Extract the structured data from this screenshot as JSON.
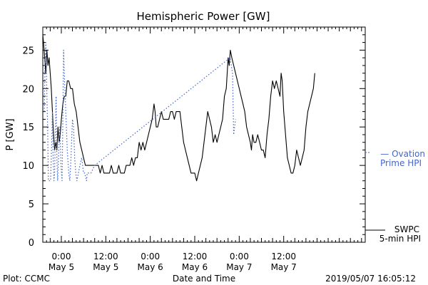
{
  "page": {
    "footer_left": "Plot: CCMC",
    "footer_right": "2019/05/07 16:05:12"
  },
  "chart_data": {
    "type": "line",
    "title": "Hemispheric Power [GW]",
    "xlabel": "Date and Time",
    "ylabel": "P [GW]",
    "ylim": [
      0,
      28
    ],
    "yticks": [
      0,
      5,
      10,
      15,
      20,
      25
    ],
    "xlim_hours": [
      -5,
      82
    ],
    "x_units": "hours since 2019-05-05 00:00 UT",
    "xticks": [
      {
        "t": 0,
        "time": "0:00",
        "date": "May 5"
      },
      {
        "t": 12,
        "time": "12:00",
        "date": "May 5"
      },
      {
        "t": 24,
        "time": "0:00",
        "date": "May 6"
      },
      {
        "t": 36,
        "time": "12:00",
        "date": "May 6"
      },
      {
        "t": 48,
        "time": "0:00",
        "date": "May 7"
      },
      {
        "t": 60,
        "time": "12:00",
        "date": "May 7"
      }
    ],
    "grid": false,
    "legend_position": "right",
    "series": [
      {
        "name": "SWPC 5-min HPI",
        "label_lines": [
          "SWPC",
          "5-min HPI"
        ],
        "color": "#000000",
        "style": "solid",
        "points": [
          [
            -5,
            27
          ],
          [
            -4.8,
            26
          ],
          [
            -4.5,
            24
          ],
          [
            -4.2,
            22
          ],
          [
            -3.9,
            25
          ],
          [
            -3.6,
            23
          ],
          [
            -3.3,
            24
          ],
          [
            -3,
            22
          ],
          [
            -2.7,
            20
          ],
          [
            -2.4,
            17
          ],
          [
            -2.1,
            14
          ],
          [
            -1.8,
            12
          ],
          [
            -1.5,
            13
          ],
          [
            -1.2,
            12
          ],
          [
            -0.9,
            15
          ],
          [
            -0.6,
            13
          ],
          [
            -0.3,
            14
          ],
          [
            0,
            16
          ],
          [
            0.4,
            18
          ],
          [
            0.8,
            19
          ],
          [
            1.2,
            19
          ],
          [
            1.6,
            21
          ],
          [
            2,
            21
          ],
          [
            2.5,
            20
          ],
          [
            3,
            20
          ],
          [
            3.5,
            18
          ],
          [
            4,
            17
          ],
          [
            4.5,
            15
          ],
          [
            5,
            13
          ],
          [
            5.5,
            12
          ],
          [
            6,
            11
          ],
          [
            6.5,
            10
          ],
          [
            7,
            10
          ],
          [
            8,
            10
          ],
          [
            9,
            10
          ],
          [
            10,
            10
          ],
          [
            10.5,
            9
          ],
          [
            11,
            10
          ],
          [
            11.5,
            9
          ],
          [
            12,
            9
          ],
          [
            13,
            9
          ],
          [
            13.5,
            10
          ],
          [
            14,
            9
          ],
          [
            15,
            9
          ],
          [
            15.5,
            10
          ],
          [
            16,
            9
          ],
          [
            17,
            9
          ],
          [
            17.5,
            10
          ],
          [
            18,
            10
          ],
          [
            18.5,
            10
          ],
          [
            19,
            11
          ],
          [
            19.5,
            10
          ],
          [
            20,
            11
          ],
          [
            20.5,
            11
          ],
          [
            21,
            13
          ],
          [
            21.5,
            12
          ],
          [
            22,
            13
          ],
          [
            22.5,
            12
          ],
          [
            23,
            13
          ],
          [
            23.5,
            14
          ],
          [
            24,
            15
          ],
          [
            24.5,
            16
          ],
          [
            25,
            18
          ],
          [
            25.3,
            17
          ],
          [
            25.6,
            15
          ],
          [
            26,
            15
          ],
          [
            26.5,
            16
          ],
          [
            27,
            17
          ],
          [
            27.5,
            16
          ],
          [
            28,
            16
          ],
          [
            29,
            16
          ],
          [
            29.5,
            17
          ],
          [
            30,
            17
          ],
          [
            30.5,
            16
          ],
          [
            31,
            17
          ],
          [
            32,
            17
          ],
          [
            32.5,
            15
          ],
          [
            33,
            13
          ],
          [
            33.5,
            12
          ],
          [
            34,
            11
          ],
          [
            34.5,
            10
          ],
          [
            35,
            9
          ],
          [
            36,
            9
          ],
          [
            36.5,
            8
          ],
          [
            37,
            9
          ],
          [
            37.5,
            10
          ],
          [
            38,
            11
          ],
          [
            38.5,
            13
          ],
          [
            39,
            15
          ],
          [
            39.5,
            17
          ],
          [
            40,
            16
          ],
          [
            40.5,
            15
          ],
          [
            41,
            13
          ],
          [
            41.5,
            14
          ],
          [
            42,
            13
          ],
          [
            42.5,
            14
          ],
          [
            43,
            15
          ],
          [
            43.5,
            16
          ],
          [
            44,
            19
          ],
          [
            44.5,
            20
          ],
          [
            45,
            24
          ],
          [
            45.3,
            23
          ],
          [
            45.6,
            25
          ],
          [
            46,
            24
          ],
          [
            46.5,
            23
          ],
          [
            47,
            22
          ],
          [
            47.5,
            21
          ],
          [
            48,
            20
          ],
          [
            48.5,
            19
          ],
          [
            49,
            18
          ],
          [
            49.5,
            17
          ],
          [
            50,
            15
          ],
          [
            50.5,
            14
          ],
          [
            51,
            13
          ],
          [
            51.3,
            12
          ],
          [
            51.6,
            14
          ],
          [
            52,
            13
          ],
          [
            52.5,
            13
          ],
          [
            53,
            14
          ],
          [
            53.5,
            13
          ],
          [
            54,
            12
          ],
          [
            54.5,
            12
          ],
          [
            55,
            11
          ],
          [
            55.5,
            14
          ],
          [
            56,
            16
          ],
          [
            56.5,
            19
          ],
          [
            57,
            21
          ],
          [
            57.5,
            20
          ],
          [
            58,
            21
          ],
          [
            58.5,
            20
          ],
          [
            59,
            19
          ],
          [
            59.3,
            22
          ],
          [
            59.6,
            21
          ],
          [
            60,
            17
          ],
          [
            60.5,
            14
          ],
          [
            61,
            11
          ],
          [
            61.5,
            10
          ],
          [
            62,
            9
          ],
          [
            62.5,
            9
          ],
          [
            63,
            10
          ],
          [
            63.5,
            12
          ],
          [
            64,
            11
          ],
          [
            64.5,
            10
          ],
          [
            65,
            11
          ],
          [
            65.5,
            12
          ],
          [
            66,
            15
          ],
          [
            66.5,
            17
          ],
          [
            67,
            18
          ],
          [
            67.5,
            19
          ],
          [
            68,
            20
          ],
          [
            68.4,
            22
          ]
        ]
      },
      {
        "name": "Ovation Prime HPI",
        "label_lines": [
          "— Ovation",
          "Prime HPI"
        ],
        "color": "#4466cc",
        "style": "dotted",
        "points": [
          [
            -4.6,
            17
          ],
          [
            -4.4,
            24
          ],
          [
            -4.2,
            26
          ],
          [
            -4,
            21
          ],
          [
            -3.7,
            15
          ],
          [
            -3.5,
            8
          ],
          [
            -3.2,
            8
          ],
          [
            -2.9,
            8
          ],
          [
            -2.6,
            13
          ],
          [
            -2.4,
            17
          ],
          [
            -2.2,
            11
          ],
          [
            -2,
            8
          ],
          [
            -1.8,
            9
          ],
          [
            -1.6,
            15
          ],
          [
            -1.4,
            19
          ],
          [
            -1.2,
            11
          ],
          [
            -1,
            8
          ],
          [
            -0.7,
            12
          ],
          [
            -0.4,
            15
          ],
          [
            -0.1,
            10
          ],
          [
            0.2,
            8
          ],
          [
            0.4,
            16
          ],
          [
            0.6,
            25
          ],
          [
            0.8,
            22
          ],
          [
            1.2,
            17
          ],
          [
            1.6,
            12
          ],
          [
            2,
            9
          ],
          [
            2.3,
            8
          ],
          [
            2.6,
            11
          ],
          [
            3,
            16
          ],
          [
            3.3,
            15
          ],
          [
            3.6,
            11
          ],
          [
            3.9,
            9
          ],
          [
            4.2,
            8
          ],
          [
            4.6,
            9
          ],
          [
            5,
            10
          ],
          [
            5.5,
            11
          ],
          [
            6,
            9
          ],
          [
            6.3,
            9
          ],
          [
            6.8,
            8
          ],
          [
            7,
            9
          ],
          [
            8,
            9
          ],
          [
            9,
            10
          ],
          [
            45.5,
            24
          ],
          [
            46.2,
            22
          ],
          [
            46.5,
            14
          ],
          [
            47,
            16
          ]
        ]
      }
    ]
  }
}
